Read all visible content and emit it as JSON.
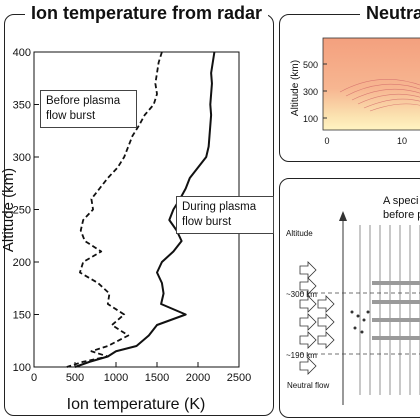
{
  "left_panel": {
    "title": "Ion temperature from radar",
    "label_before": "Before plasma flow burst",
    "label_during": "During plasma flow burst"
  },
  "top_right_panel": {
    "title": "Neutral",
    "ylabel": "Altitude (km)",
    "yticks": [
      "500",
      "300",
      "100"
    ],
    "xticks": [
      "0",
      "10"
    ]
  },
  "bottom_right_panel": {
    "altitude_label": "Altitude",
    "level_300": "~300 km",
    "level_190": "~190 km",
    "neutral_flow_label": "Neutral flow",
    "caption_line1": "A speci",
    "caption_line2": "before p"
  },
  "chart_data": {
    "type": "line",
    "title": "Ion temperature from radar",
    "xlabel": "Ion temperature (K)",
    "ylabel": "Altitude (km)",
    "xlim": [
      0,
      2500
    ],
    "ylim": [
      100,
      400
    ],
    "xticks": [
      0,
      500,
      1000,
      1500,
      2000,
      2500
    ],
    "yticks": [
      100,
      150,
      200,
      250,
      300,
      350,
      400
    ],
    "series": [
      {
        "name": "Before plasma flow burst",
        "style": "dashed",
        "points": [
          [
            1560,
            400
          ],
          [
            1520,
            390
          ],
          [
            1500,
            380
          ],
          [
            1480,
            370
          ],
          [
            1500,
            360
          ],
          [
            1460,
            350
          ],
          [
            1350,
            340
          ],
          [
            1280,
            330
          ],
          [
            1200,
            320
          ],
          [
            1150,
            310
          ],
          [
            1100,
            300
          ],
          [
            1020,
            290
          ],
          [
            900,
            280
          ],
          [
            800,
            270
          ],
          [
            700,
            260
          ],
          [
            720,
            250
          ],
          [
            600,
            240
          ],
          [
            570,
            230
          ],
          [
            620,
            220
          ],
          [
            820,
            210
          ],
          [
            600,
            200
          ],
          [
            560,
            190
          ],
          [
            780,
            180
          ],
          [
            920,
            170
          ],
          [
            900,
            160
          ],
          [
            1100,
            150
          ],
          [
            950,
            140
          ],
          [
            1150,
            130
          ],
          [
            900,
            120
          ],
          [
            700,
            115
          ],
          [
            900,
            110
          ],
          [
            600,
            105
          ],
          [
            400,
            100
          ]
        ]
      },
      {
        "name": "During plasma flow burst",
        "style": "solid",
        "points": [
          [
            2200,
            400
          ],
          [
            2180,
            390
          ],
          [
            2160,
            380
          ],
          [
            2170,
            370
          ],
          [
            2160,
            360
          ],
          [
            2150,
            350
          ],
          [
            2160,
            340
          ],
          [
            2150,
            330
          ],
          [
            2140,
            320
          ],
          [
            2130,
            310
          ],
          [
            2100,
            300
          ],
          [
            2000,
            290
          ],
          [
            1900,
            280
          ],
          [
            1850,
            270
          ],
          [
            1780,
            260
          ],
          [
            1700,
            250
          ],
          [
            1650,
            240
          ],
          [
            1740,
            230
          ],
          [
            1800,
            220
          ],
          [
            1700,
            210
          ],
          [
            1560,
            200
          ],
          [
            1500,
            190
          ],
          [
            1560,
            180
          ],
          [
            1580,
            170
          ],
          [
            1550,
            160
          ],
          [
            1850,
            150
          ],
          [
            1500,
            140
          ],
          [
            1400,
            130
          ],
          [
            1250,
            120
          ],
          [
            1000,
            115
          ],
          [
            900,
            110
          ],
          [
            680,
            105
          ],
          [
            500,
            100
          ]
        ]
      }
    ]
  }
}
